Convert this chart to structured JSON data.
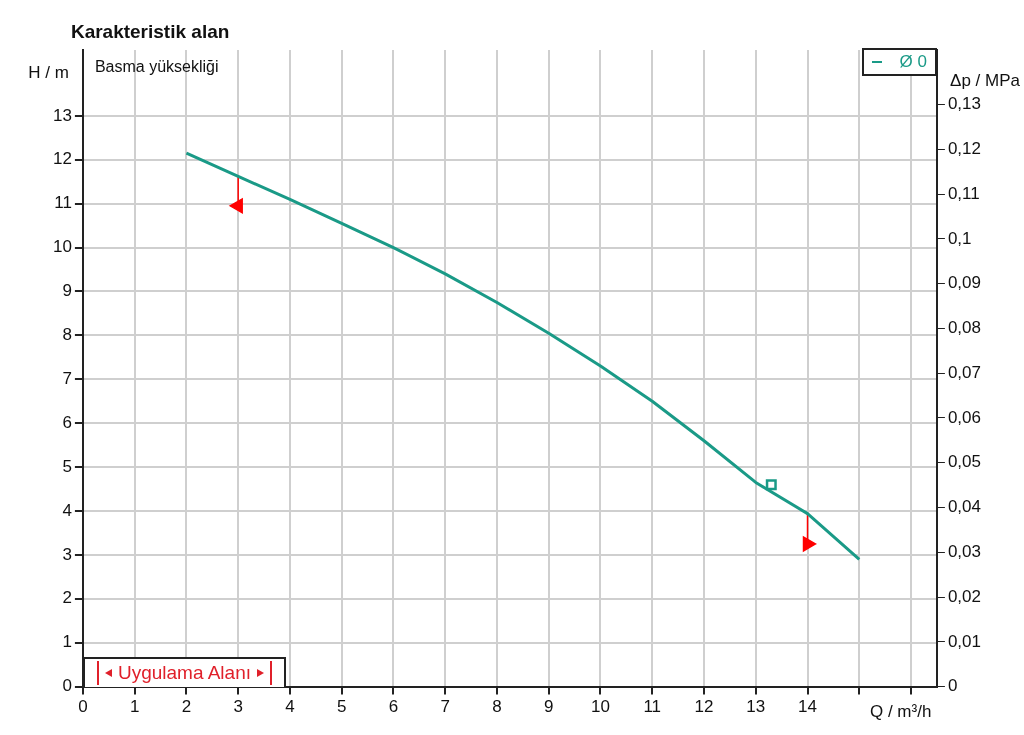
{
  "chart_data": {
    "type": "line",
    "title": "Karakteristik alan",
    "xlabel": "Q / m³/h",
    "ylabel": "H / m",
    "y2label": "Δp / MPa",
    "annotations": [
      "Basma yüksekliği",
      "Uygulama Alanı"
    ],
    "xlim": [
      0,
      16.5
    ],
    "xticks": [
      0,
      1,
      2,
      3,
      4,
      5,
      6,
      7,
      8,
      9,
      10,
      11,
      12,
      13,
      14,
      {
        "value": 15,
        "label": null
      },
      {
        "value": 16,
        "label": null
      }
    ],
    "ylim": [
      0,
      14.5
    ],
    "yticks": [
      0,
      1,
      2,
      3,
      4,
      5,
      6,
      7,
      8,
      9,
      10,
      11,
      12,
      13
    ],
    "y2lim": [
      0,
      0.1422
    ],
    "y2ticks": [
      0,
      {
        "value": 0.01,
        "label": "0,01"
      },
      {
        "value": 0.02,
        "label": "0,02"
      },
      {
        "value": 0.03,
        "label": "0,03"
      },
      {
        "value": 0.04,
        "label": "0,04"
      },
      {
        "value": 0.05,
        "label": "0,05"
      },
      {
        "value": 0.06,
        "label": "0,06"
      },
      {
        "value": 0.07,
        "label": "0,07"
      },
      {
        "value": 0.08,
        "label": "0,08"
      },
      {
        "value": 0.09,
        "label": "0,09"
      },
      {
        "value": 0.1,
        "label": "0,1"
      },
      {
        "value": 0.11,
        "label": "0,11"
      },
      {
        "value": 0.12,
        "label": "0,12"
      },
      {
        "value": 0.13,
        "label": "0,13"
      }
    ],
    "grid": true,
    "legend": "top right",
    "line_style": "solid",
    "series": [
      {
        "name": "Ø 0",
        "color": "#1a9a87",
        "marker": "none",
        "x": [
          2,
          3,
          4,
          5,
          6,
          7,
          8,
          9,
          10,
          11,
          12,
          13,
          14,
          15
        ],
        "values": [
          12.15,
          11.62,
          11.1,
          10.55,
          10.0,
          9.4,
          8.75,
          8.05,
          7.3,
          6.5,
          5.6,
          4.65,
          3.94,
          2.9
        ]
      },
      {
        "type": "scatter",
        "color": "#1a9a87",
        "marker": "square",
        "x": [
          13.3
        ],
        "values": [
          4.6
        ]
      },
      {
        "type": "line",
        "color": "#ff0000",
        "marker": "triangle",
        "x": [
          3,
          3
        ],
        "values": [
          11.62,
          10.95
        ]
      },
      {
        "type": "line",
        "color": "#ff0000",
        "marker": "triangle",
        "x": [
          14,
          14
        ],
        "values": [
          3.94,
          3.25
        ]
      }
    ]
  }
}
